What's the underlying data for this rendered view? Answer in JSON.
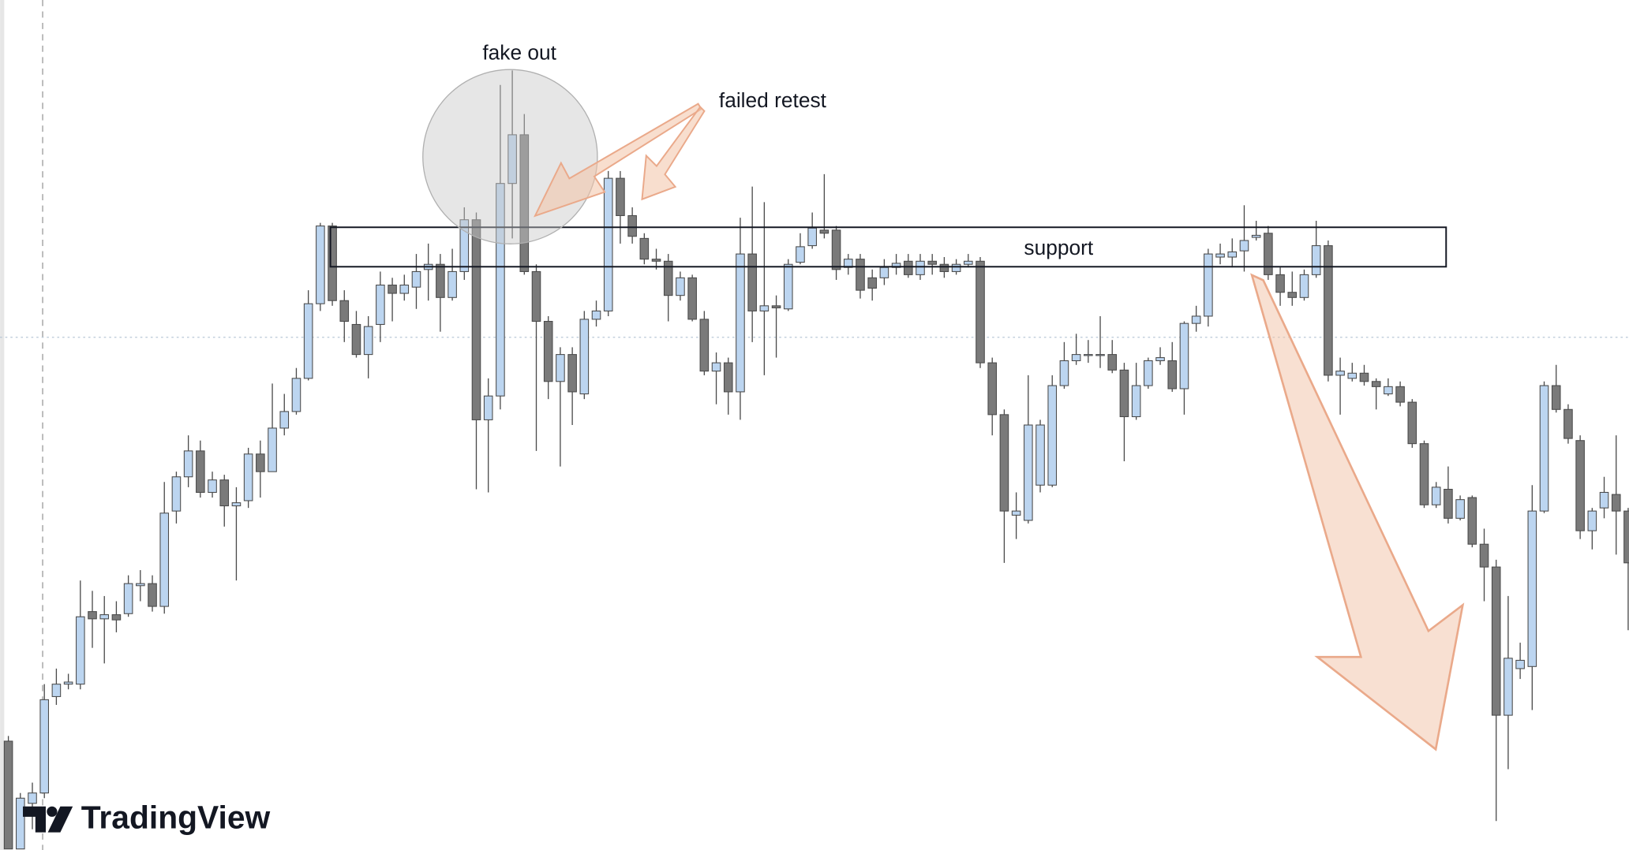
{
  "chart_data": {
    "type": "candlestick",
    "annotations": [
      "fake out",
      "failed retest",
      "support"
    ],
    "watermark": "TradingView",
    "up_color": "#bcd5f0",
    "down_color": "#7a7a7a",
    "wick_color": "#4a4a4a",
    "ylim": [
      0,
      820
    ],
    "open": [
      105,
      1,
      45,
      55,
      148,
      160,
      160,
      230,
      223,
      227,
      228,
      255,
      257,
      235,
      327,
      360,
      385,
      345,
      357,
      332,
      337,
      382,
      365,
      407,
      423,
      455,
      527,
      602,
      530,
      507,
      478,
      507,
      545,
      537,
      543,
      560,
      565,
      533,
      558,
      608,
      415,
      438,
      643,
      690,
      558,
      510,
      452,
      478,
      440,
      512,
      520,
      648,
      612,
      590,
      570,
      568,
      535,
      552,
      512,
      462,
      470,
      442,
      575,
      520,
      525,
      522,
      567,
      583,
      598,
      598,
      562,
      570,
      552,
      552,
      562,
      568,
      555,
      568,
      565,
      558,
      565,
      568,
      470,
      420,
      323,
      318,
      352,
      352,
      448,
      472,
      477,
      478,
      478,
      463,
      418,
      448,
      472,
      472,
      445,
      508,
      515,
      572,
      572,
      578,
      591,
      595,
      555,
      538,
      533,
      555,
      583,
      458,
      455,
      460,
      452,
      440,
      447,
      432,
      392,
      333,
      348,
      320,
      340,
      295,
      273,
      130,
      175,
      177,
      327,
      448,
      425,
      395,
      308,
      330,
      343,
      327
    ],
    "high": [
      110,
      55,
      65,
      160,
      175,
      170,
      260,
      250,
      245,
      240,
      265,
      270,
      265,
      355,
      365,
      400,
      395,
      365,
      362,
      350,
      388,
      395,
      450,
      440,
      465,
      540,
      605,
      605,
      540,
      520,
      515,
      558,
      552,
      555,
      575,
      585,
      575,
      580,
      620,
      615,
      455,
      738,
      752,
      710,
      565,
      515,
      485,
      485,
      520,
      530,
      655,
      655,
      620,
      595,
      580,
      575,
      558,
      555,
      520,
      480,
      475,
      610,
      640,
      625,
      535,
      570,
      595,
      615,
      652,
      602,
      575,
      575,
      560,
      570,
      575,
      575,
      575,
      575,
      572,
      570,
      575,
      572,
      475,
      425,
      345,
      458,
      415,
      458,
      490,
      498,
      492,
      515,
      492,
      470,
      470,
      475,
      485,
      490,
      510,
      525,
      580,
      585,
      590,
      622,
      607,
      602,
      562,
      558,
      560,
      607,
      588,
      475,
      470,
      468,
      455,
      455,
      452,
      435,
      395,
      355,
      370,
      342,
      342,
      310,
      280,
      245,
      200,
      352,
      452,
      468,
      430,
      400,
      330,
      360,
      400,
      330
    ],
    "low": [
      1,
      1,
      20,
      50,
      140,
      155,
      155,
      195,
      180,
      210,
      225,
      240,
      230,
      228,
      315,
      350,
      340,
      340,
      312,
      260,
      330,
      340,
      365,
      400,
      420,
      453,
      520,
      525,
      490,
      475,
      455,
      490,
      510,
      530,
      522,
      530,
      500,
      530,
      550,
      348,
      345,
      425,
      590,
      555,
      385,
      435,
      370,
      410,
      435,
      505,
      515,
      585,
      585,
      565,
      560,
      510,
      530,
      510,
      458,
      430,
      420,
      415,
      490,
      458,
      475,
      520,
      565,
      580,
      590,
      550,
      555,
      532,
      530,
      545,
      555,
      552,
      550,
      555,
      552,
      555,
      562,
      465,
      400,
      277,
      300,
      315,
      345,
      350,
      445,
      468,
      470,
      465,
      460,
      375,
      415,
      445,
      468,
      442,
      420,
      500,
      505,
      565,
      562,
      558,
      588,
      550,
      525,
      525,
      530,
      552,
      452,
      420,
      452,
      448,
      425,
      438,
      428,
      388,
      330,
      330,
      315,
      318,
      292,
      240,
      28,
      78,
      165,
      135,
      325,
      422,
      392,
      300,
      290,
      320,
      285,
      212
    ],
    "close": [
      1,
      50,
      55,
      145,
      160,
      162,
      225,
      223,
      227,
      222,
      257,
      257,
      235,
      325,
      360,
      385,
      345,
      357,
      332,
      335,
      382,
      365,
      407,
      423,
      455,
      527,
      602,
      530,
      510,
      478,
      505,
      545,
      537,
      545,
      558,
      565,
      533,
      558,
      608,
      415,
      438,
      643,
      690,
      558,
      510,
      452,
      478,
      442,
      512,
      520,
      648,
      612,
      592,
      570,
      568,
      535,
      552,
      512,
      462,
      470,
      442,
      575,
      520,
      525,
      523,
      565,
      582,
      600,
      595,
      560,
      570,
      540,
      542,
      562,
      566,
      555,
      568,
      565,
      558,
      565,
      568,
      470,
      420,
      327,
      327,
      410,
      410,
      448,
      472,
      478,
      478,
      478,
      463,
      418,
      448,
      472,
      475,
      445,
      508,
      515,
      575,
      575,
      577,
      588,
      593,
      555,
      538,
      533,
      555,
      583,
      458,
      462,
      460,
      452,
      447,
      447,
      432,
      392,
      333,
      350,
      320,
      338,
      295,
      273,
      130,
      185,
      183,
      327,
      448,
      425,
      397,
      308,
      327,
      345,
      327,
      277
    ]
  }
}
